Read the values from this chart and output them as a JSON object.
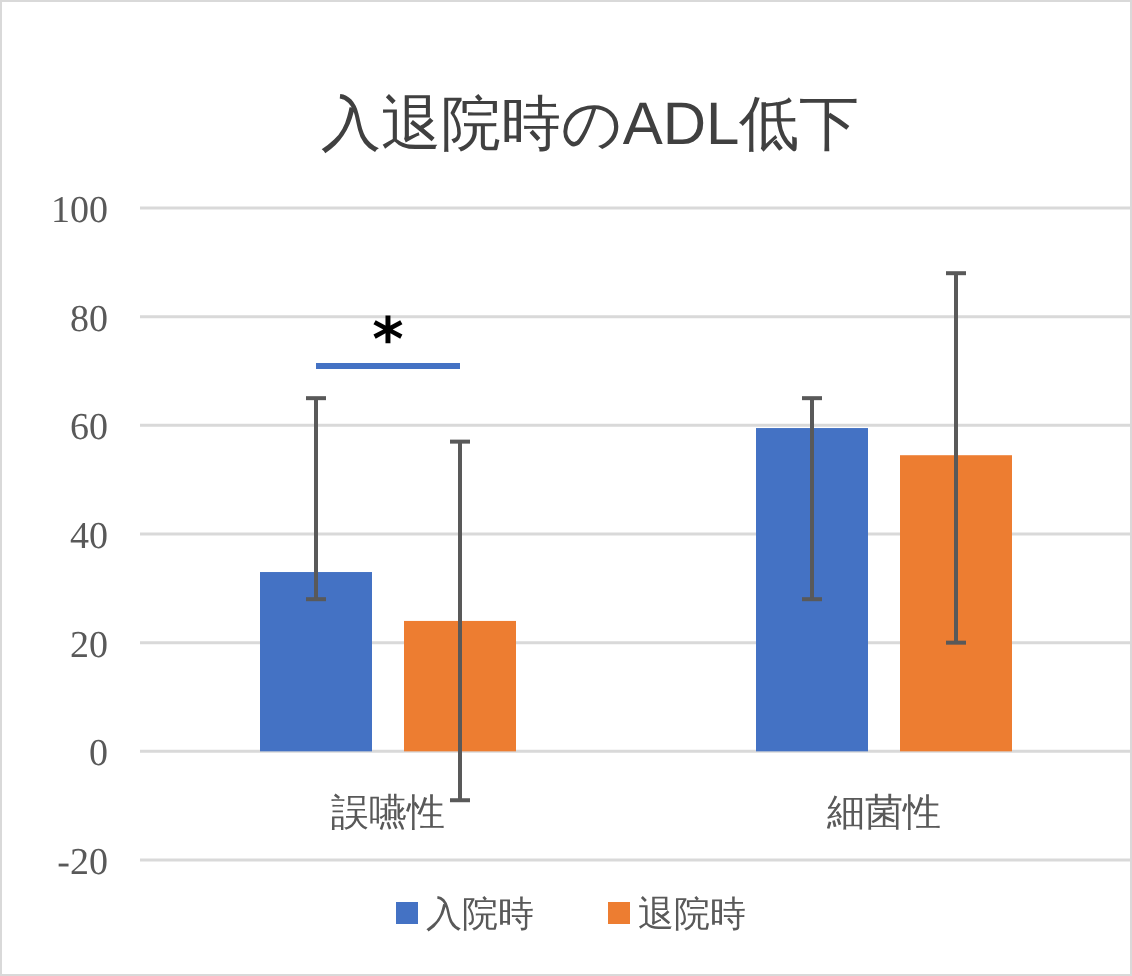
{
  "chart_data": {
    "type": "bar",
    "title": "入退院時のADL低下",
    "categories": [
      "誤嚥性",
      "細菌性"
    ],
    "series": [
      {
        "name": "入院時",
        "color": "#4472c4",
        "values": [
          33,
          59.5
        ],
        "errors": [
          [
            28,
            65
          ],
          [
            28,
            65
          ]
        ]
      },
      {
        "name": "退院時",
        "color": "#ed7d31",
        "values": [
          24,
          54.5
        ],
        "errors": [
          [
            -9,
            57
          ],
          [
            20,
            88
          ]
        ]
      }
    ],
    "ylim": [
      -20,
      100
    ],
    "yticks": [
      -20,
      0,
      20,
      40,
      60,
      80,
      100
    ],
    "grid": "y",
    "legend": "bottom",
    "annotations": [
      "*"
    ]
  }
}
